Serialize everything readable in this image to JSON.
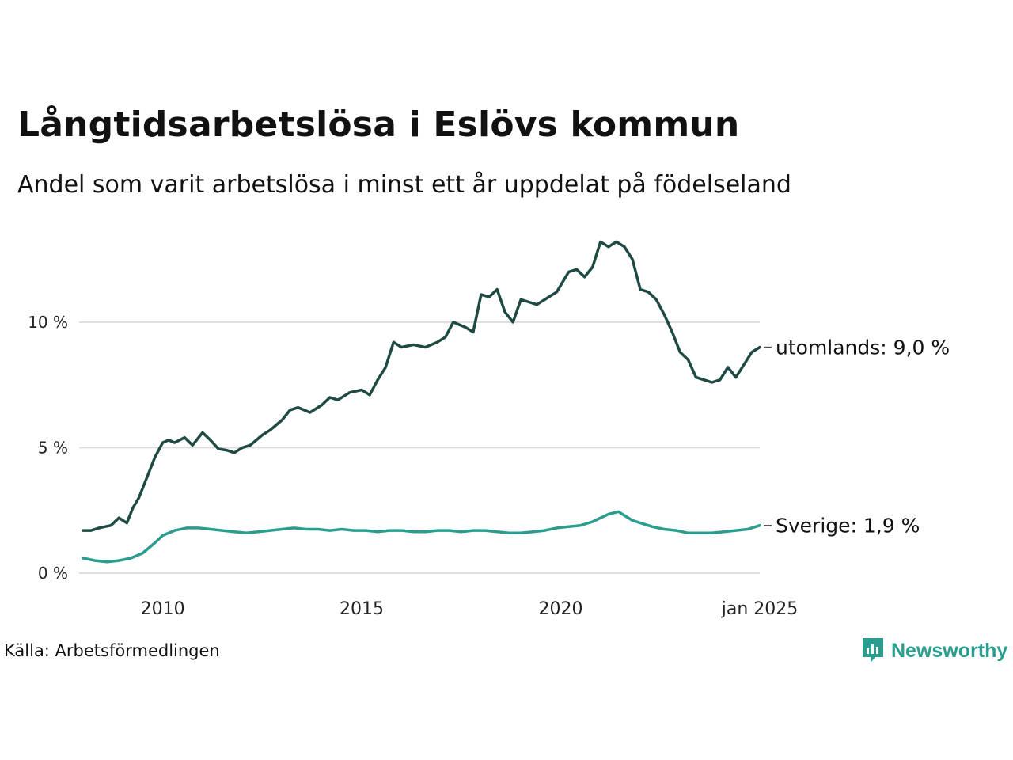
{
  "header": {
    "title": "Långtidsarbetslösa i Eslövs kommun",
    "subtitle": "Andel som varit arbetslösa i minst ett år uppdelat på födelseland"
  },
  "footer": {
    "source": "Källa: Arbetsförmedlingen",
    "brand": "Newsworthy"
  },
  "colors": {
    "utomlands": "#1f4a44",
    "sverige": "#2a9d8f",
    "grid": "#dddddd",
    "brand": "#2a9d8f"
  },
  "icons": {
    "brand_logo": "newsworthy-logo-icon"
  },
  "chart_data": {
    "type": "line",
    "x_range": [
      2008.0,
      2025.0
    ],
    "ylim": [
      0,
      14
    ],
    "y_ticks": [
      0,
      5,
      10
    ],
    "y_tick_labels": [
      "0 %",
      "5 %",
      "10 %"
    ],
    "x_ticks": [
      2010,
      2015,
      2020,
      2025
    ],
    "x_tick_labels": [
      "2010",
      "2015",
      "2020",
      "jan 2025"
    ],
    "grid": "horizontal",
    "series": [
      {
        "name": "utomlands",
        "end_label": "utomlands: 9,0 %",
        "color_key": "utomlands",
        "x": [
          2008.0,
          2008.2,
          2008.4,
          2008.7,
          2008.9,
          2009.1,
          2009.25,
          2009.4,
          2009.6,
          2009.8,
          2010.0,
          2010.15,
          2010.3,
          2010.55,
          2010.75,
          2011.0,
          2011.2,
          2011.4,
          2011.6,
          2011.8,
          2012.0,
          2012.2,
          2012.5,
          2012.7,
          2013.0,
          2013.2,
          2013.4,
          2013.7,
          2014.0,
          2014.2,
          2014.4,
          2014.7,
          2015.0,
          2015.2,
          2015.4,
          2015.6,
          2015.8,
          2016.0,
          2016.3,
          2016.6,
          2016.9,
          2017.1,
          2017.3,
          2017.6,
          2017.8,
          2018.0,
          2018.2,
          2018.4,
          2018.6,
          2018.8,
          2019.0,
          2019.2,
          2019.4,
          2019.7,
          2019.9,
          2020.2,
          2020.4,
          2020.6,
          2020.8,
          2021.0,
          2021.2,
          2021.4,
          2021.6,
          2021.8,
          2022.0,
          2022.2,
          2022.4,
          2022.6,
          2022.8,
          2023.0,
          2023.2,
          2023.4,
          2023.6,
          2023.8,
          2024.0,
          2024.2,
          2024.4,
          2024.6,
          2024.8,
          2025.0
        ],
        "y": [
          1.7,
          1.7,
          1.8,
          1.9,
          2.2,
          2.0,
          2.6,
          3.0,
          3.8,
          4.6,
          5.2,
          5.3,
          5.2,
          5.4,
          5.1,
          5.6,
          5.3,
          4.95,
          4.9,
          4.8,
          5.0,
          5.1,
          5.5,
          5.7,
          6.1,
          6.5,
          6.6,
          6.4,
          6.7,
          7.0,
          6.9,
          7.2,
          7.3,
          7.1,
          7.7,
          8.2,
          9.2,
          9.0,
          9.1,
          9.0,
          9.2,
          9.4,
          10.0,
          9.8,
          9.6,
          11.1,
          11.0,
          11.3,
          10.4,
          10.0,
          10.9,
          10.8,
          10.7,
          11.0,
          11.2,
          12.0,
          12.1,
          11.8,
          12.2,
          13.2,
          13.0,
          13.2,
          13.0,
          12.5,
          11.3,
          11.2,
          10.9,
          10.3,
          9.6,
          8.8,
          8.5,
          7.8,
          7.7,
          7.6,
          7.7,
          8.2,
          7.8,
          8.3,
          8.8,
          9.0
        ]
      },
      {
        "name": "Sverige",
        "end_label": "Sverige: 1,9 %",
        "color_key": "sverige",
        "x": [
          2008.0,
          2008.3,
          2008.6,
          2008.9,
          2009.2,
          2009.5,
          2009.8,
          2010.0,
          2010.3,
          2010.6,
          2010.9,
          2011.2,
          2011.5,
          2011.8,
          2012.1,
          2012.4,
          2012.7,
          2013.0,
          2013.3,
          2013.6,
          2013.9,
          2014.2,
          2014.5,
          2014.8,
          2015.1,
          2015.4,
          2015.7,
          2016.0,
          2016.3,
          2016.6,
          2016.9,
          2017.2,
          2017.5,
          2017.8,
          2018.1,
          2018.4,
          2018.7,
          2019.0,
          2019.3,
          2019.6,
          2019.9,
          2020.2,
          2020.5,
          2020.8,
          2021.0,
          2021.2,
          2021.45,
          2021.6,
          2021.8,
          2022.0,
          2022.3,
          2022.6,
          2022.9,
          2023.2,
          2023.5,
          2023.8,
          2024.1,
          2024.4,
          2024.7,
          2025.0
        ],
        "y": [
          0.6,
          0.5,
          0.45,
          0.5,
          0.6,
          0.8,
          1.2,
          1.5,
          1.7,
          1.8,
          1.8,
          1.75,
          1.7,
          1.65,
          1.6,
          1.65,
          1.7,
          1.75,
          1.8,
          1.75,
          1.75,
          1.7,
          1.75,
          1.7,
          1.7,
          1.65,
          1.7,
          1.7,
          1.65,
          1.65,
          1.7,
          1.7,
          1.65,
          1.7,
          1.7,
          1.65,
          1.6,
          1.6,
          1.65,
          1.7,
          1.8,
          1.85,
          1.9,
          2.05,
          2.2,
          2.35,
          2.45,
          2.3,
          2.1,
          2.0,
          1.85,
          1.75,
          1.7,
          1.6,
          1.6,
          1.6,
          1.65,
          1.7,
          1.75,
          1.9
        ]
      }
    ]
  }
}
